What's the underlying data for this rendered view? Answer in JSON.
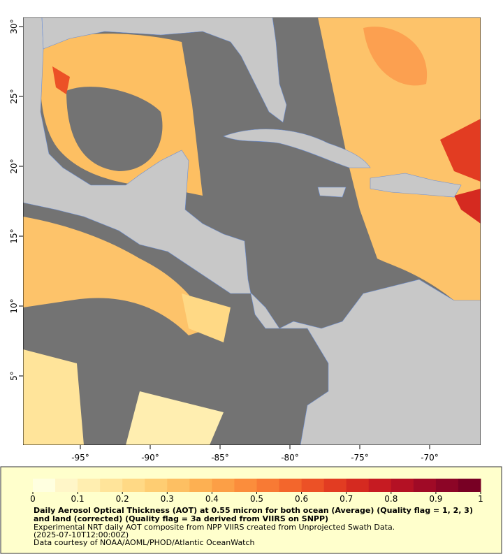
{
  "map": {
    "xlim": [
      -99.1,
      -66.35
    ],
    "ylim": [
      0.05,
      30.65
    ],
    "lon_ticks": [
      {
        "value": -95,
        "label": "-95°"
      },
      {
        "value": -90,
        "label": "-90°"
      },
      {
        "value": -85,
        "label": "-85°"
      },
      {
        "value": -80,
        "label": "-80°"
      },
      {
        "value": -75,
        "label": "-75°"
      },
      {
        "value": -70,
        "label": "-70°"
      }
    ],
    "lat_ticks": [
      {
        "value": 30,
        "label": "30°"
      },
      {
        "value": 25,
        "label": "25°"
      },
      {
        "value": 20,
        "label": "20°"
      },
      {
        "value": 15,
        "label": "15°"
      },
      {
        "value": 10,
        "label": "10°"
      },
      {
        "value": 5,
        "label": "5°"
      }
    ]
  },
  "colorbar": {
    "lim": [
      0,
      1
    ],
    "ticks": [
      0,
      0.1,
      0.2,
      0.3,
      0.4,
      0.5,
      0.6,
      0.7,
      0.8,
      0.9,
      1
    ],
    "colors": [
      "#ffffe0",
      "#fff6c8",
      "#ffeeb0",
      "#ffe49a",
      "#ffd985",
      "#fecd72",
      "#fdbf62",
      "#fdb052",
      "#fc9f46",
      "#fb8d3c",
      "#f87a34",
      "#f3662c",
      "#ec5126",
      "#e23c22",
      "#d52a20",
      "#c61b22",
      "#b41124",
      "#a00a26",
      "#8c0526",
      "#780024"
    ]
  },
  "caption": {
    "title": "Daily Aerosol Optical Thickness (AOT) at 0.55 micron for both ocean (Average) (Quality flag = 1, 2, 3) and land (corrected) (Quality flag = 3a derived from VIIRS on SNPP)",
    "lines": [
      "Experimental NRT daily AOT composite from NPP VIIRS created from Unprojected Swath Data.",
      "(2025-07-10T12:00:00Z)",
      "Data courtesy of NOAA/AOML/PHOD/Atlantic OceanWatch"
    ]
  }
}
